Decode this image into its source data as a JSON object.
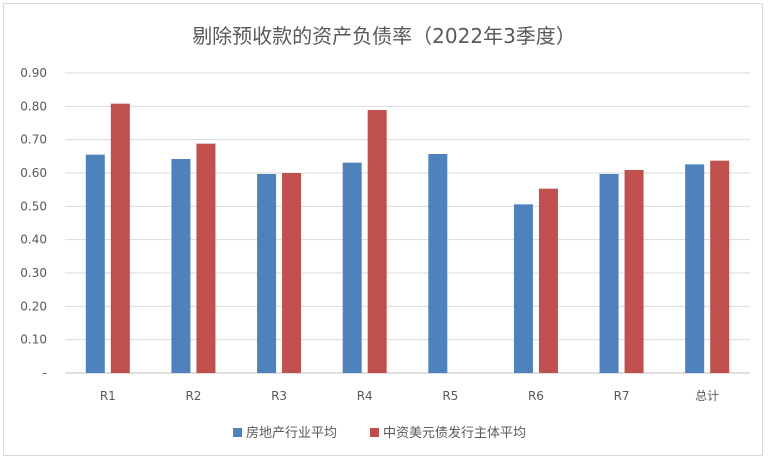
{
  "chart_data": {
    "type": "bar",
    "title": "剔除预收款的资产负债率（2022年3季度）",
    "categories": [
      "R1",
      "R2",
      "R3",
      "R4",
      "R5",
      "R6",
      "R7",
      "总计"
    ],
    "series": [
      {
        "name": "房地产行业平均",
        "color": "#4f81bd",
        "values": [
          0.655,
          0.642,
          0.597,
          0.631,
          0.657,
          0.506,
          0.597,
          0.626
        ]
      },
      {
        "name": "中资美元债发行主体平均",
        "color": "#c0504d",
        "values": [
          0.808,
          0.688,
          0.6,
          0.789,
          null,
          0.553,
          0.609,
          0.637
        ]
      }
    ],
    "ylim": [
      0,
      0.9
    ],
    "yticks": [
      "-",
      "0.10",
      "0.20",
      "0.30",
      "0.40",
      "0.50",
      "0.60",
      "0.70",
      "0.80",
      "0.90"
    ],
    "grid": true,
    "legend_position": "bottom",
    "xlabel": "",
    "ylabel": ""
  }
}
